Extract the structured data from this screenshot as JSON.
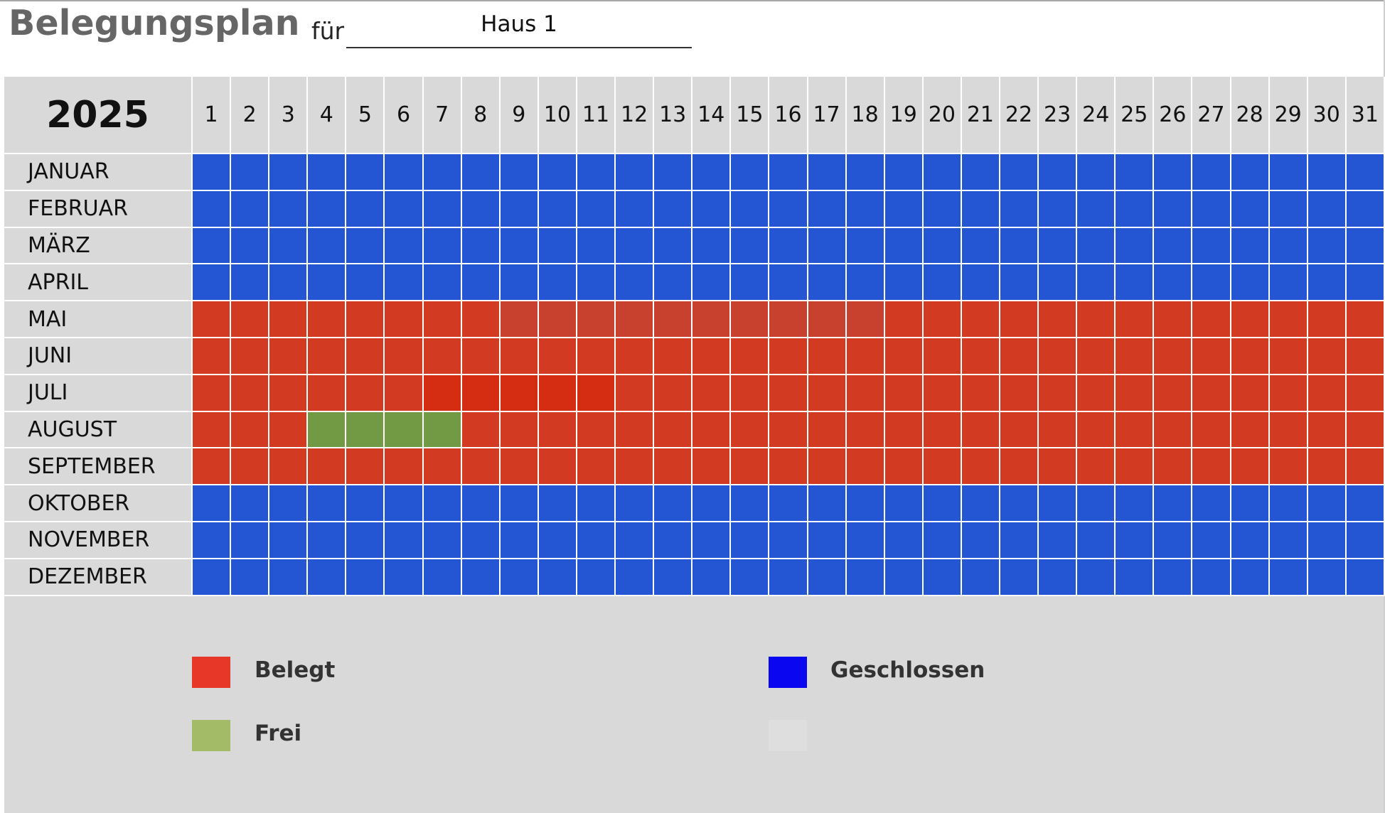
{
  "header": {
    "title": "Belegungsplan",
    "fuer_label": "für",
    "house": "Haus 1"
  },
  "calendar": {
    "year": "2025",
    "days": [
      "1",
      "2",
      "3",
      "4",
      "5",
      "6",
      "7",
      "8",
      "9",
      "10",
      "11",
      "12",
      "13",
      "14",
      "15",
      "16",
      "17",
      "18",
      "19",
      "20",
      "21",
      "22",
      "23",
      "24",
      "25",
      "26",
      "27",
      "28",
      "29",
      "30",
      "31"
    ],
    "months": [
      {
        "name": "JANUAR",
        "status": "geschlossen"
      },
      {
        "name": "FEBRUAR",
        "status": "geschlossen"
      },
      {
        "name": "MÄRZ",
        "status": "geschlossen"
      },
      {
        "name": "APRIL",
        "status": "geschlossen"
      },
      {
        "name": "MAI",
        "status": "belegt",
        "highlight": {
          "from": 9,
          "to": 18,
          "color": "#c8412f"
        }
      },
      {
        "name": "JUNI",
        "status": "belegt"
      },
      {
        "name": "JULI",
        "status": "belegt",
        "highlight": {
          "from": 7,
          "to": 11,
          "color": "#d42d12"
        }
      },
      {
        "name": "AUGUST",
        "status": "belegt",
        "frei": {
          "from": 4,
          "to": 7
        }
      },
      {
        "name": "SEPTEMBER",
        "status": "belegt"
      },
      {
        "name": "OKTOBER",
        "status": "geschlossen"
      },
      {
        "name": "NOVEMBER",
        "status": "geschlossen"
      },
      {
        "name": "DEZEMBER",
        "status": "geschlossen"
      }
    ]
  },
  "colors": {
    "belegt": "#d23a22",
    "geschlossen": "#2456d3",
    "frei": "#729a44",
    "legend_belegt": "#e63728",
    "legend_geschlossen": "#0a06ef",
    "legend_frei": "#a3bb67",
    "legend_empty": "#dedede"
  },
  "legend": {
    "belegt": "Belegt",
    "frei": "Frei",
    "geschlossen": "Geschlossen"
  }
}
